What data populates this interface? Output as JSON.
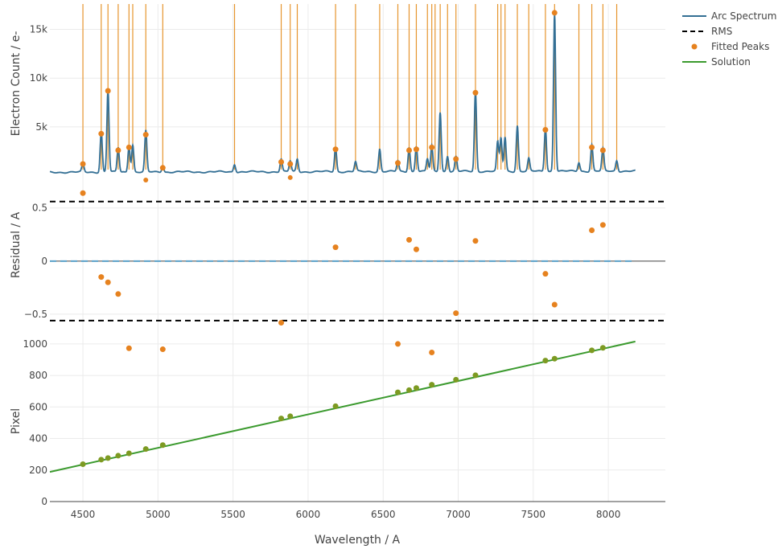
{
  "chart_data": {
    "type": "line",
    "colors": {
      "spectrum": "#336f94",
      "peak_lines": "#e6952e",
      "peaks": "#e6821f",
      "rms": "#000000",
      "solution": "#3b9a2e",
      "grid": "#ebebeb"
    },
    "legend": {
      "placement": "top-right",
      "entries": [
        {
          "name": "Arc Spectrum",
          "style": "line",
          "color": "#336f94"
        },
        {
          "name": "RMS",
          "style": "dash",
          "color": "#000000"
        },
        {
          "name": "Fitted Peaks",
          "style": "marker",
          "color": "#e6821f"
        },
        {
          "name": "Solution",
          "style": "line",
          "color": "#3b9a2e"
        }
      ]
    },
    "x_axis": {
      "label": "Wavelength / A",
      "range": [
        4280,
        8380
      ],
      "ticks": [
        4500,
        5000,
        5500,
        6000,
        6500,
        7000,
        7500,
        8000
      ],
      "tick_labels": [
        "4500",
        "5000",
        "5500",
        "6000",
        "6500",
        "7000",
        "7500",
        "8000"
      ]
    },
    "panels": [
      {
        "id": "spectrum",
        "ylabel": "Electron Count / e-",
        "ylim": [
          -700,
          17600
        ],
        "yticks": [
          5000,
          10000,
          15000
        ],
        "ytick_labels": [
          "5k",
          "10k",
          "15k"
        ],
        "grid": true,
        "baseline": 350,
        "spectrum_end": [
          4280,
          8180
        ],
        "peak_lines": [
          4500,
          4622,
          4667,
          4735,
          4807,
          4832,
          4919,
          5032,
          5510,
          5821,
          5881,
          5928,
          6183,
          6316,
          6477,
          6598,
          6673,
          6721,
          6795,
          6824,
          6846,
          6880,
          6929,
          6985,
          7115,
          7263,
          7285,
          7312,
          7394,
          7470,
          7581,
          7642,
          7804,
          7890,
          7964,
          8056
        ],
        "spectrum_peaks": [
          {
            "x": 4500,
            "h": 900
          },
          {
            "x": 4622,
            "h": 4200
          },
          {
            "x": 4667,
            "h": 8400
          },
          {
            "x": 4735,
            "h": 2500
          },
          {
            "x": 4807,
            "h": 2700
          },
          {
            "x": 4832,
            "h": 2800
          },
          {
            "x": 4919,
            "h": 4200
          },
          {
            "x": 5032,
            "h": 600
          },
          {
            "x": 5510,
            "h": 800
          },
          {
            "x": 5821,
            "h": 1300
          },
          {
            "x": 5881,
            "h": 1100
          },
          {
            "x": 5928,
            "h": 1300
          },
          {
            "x": 6183,
            "h": 2500
          },
          {
            "x": 6316,
            "h": 1000
          },
          {
            "x": 6477,
            "h": 2300
          },
          {
            "x": 6598,
            "h": 1100
          },
          {
            "x": 6673,
            "h": 2500
          },
          {
            "x": 6721,
            "h": 2600
          },
          {
            "x": 6795,
            "h": 1300
          },
          {
            "x": 6824,
            "h": 2600
          },
          {
            "x": 6880,
            "h": 6100
          },
          {
            "x": 6929,
            "h": 1600
          },
          {
            "x": 6985,
            "h": 1500
          },
          {
            "x": 7115,
            "h": 8200
          },
          {
            "x": 7263,
            "h": 3000
          },
          {
            "x": 7285,
            "h": 3400
          },
          {
            "x": 7312,
            "h": 3500
          },
          {
            "x": 7394,
            "h": 4700
          },
          {
            "x": 7470,
            "h": 1300
          },
          {
            "x": 7581,
            "h": 4500
          },
          {
            "x": 7642,
            "h": 16200
          },
          {
            "x": 7804,
            "h": 900
          },
          {
            "x": 7890,
            "h": 2700
          },
          {
            "x": 7964,
            "h": 2300
          },
          {
            "x": 8056,
            "h": 1100
          }
        ],
        "fitted_peaks": [
          {
            "x": 4500,
            "y": 1200
          },
          {
            "x": 4622,
            "y": 4300
          },
          {
            "x": 4667,
            "y": 8700
          },
          {
            "x": 4735,
            "y": 2600
          },
          {
            "x": 4807,
            "y": 2900
          },
          {
            "x": 4919,
            "y": 4200
          },
          {
            "x": 5032,
            "y": 800
          },
          {
            "x": 5821,
            "y": 1400
          },
          {
            "x": 5881,
            "y": 1200
          },
          {
            "x": 6183,
            "y": 2700
          },
          {
            "x": 6598,
            "y": 1300
          },
          {
            "x": 6673,
            "y": 2600
          },
          {
            "x": 6721,
            "y": 2700
          },
          {
            "x": 6824,
            "y": 2900
          },
          {
            "x": 6985,
            "y": 1700
          },
          {
            "x": 7115,
            "y": 8500
          },
          {
            "x": 7581,
            "y": 4700
          },
          {
            "x": 7642,
            "y": 16700
          },
          {
            "x": 7890,
            "y": 2900
          },
          {
            "x": 7964,
            "y": 2600
          }
        ],
        "cut_markers": [
          {
            "x": 4919,
            "y": -450
          },
          {
            "x": 5881,
            "y": -200
          }
        ]
      },
      {
        "id": "residual",
        "ylabel": "Residual / A",
        "ylim": [
          -0.72,
          0.74
        ],
        "yticks": [
          -0.5,
          0,
          0.5
        ],
        "ytick_labels": [
          "−0.5",
          "0",
          "0.5"
        ],
        "grid": true,
        "rms": [
          0.56,
          -0.56
        ],
        "zero_line": true,
        "points": [
          {
            "x": 4500,
            "y": 0.64
          },
          {
            "x": 4622,
            "y": -0.15
          },
          {
            "x": 4667,
            "y": -0.2
          },
          {
            "x": 4735,
            "y": -0.31
          },
          {
            "x": 4807,
            "y": -0.82
          },
          {
            "x": 5032,
            "y": -0.83
          },
          {
            "x": 5821,
            "y": -0.58
          },
          {
            "x": 6183,
            "y": 0.13
          },
          {
            "x": 6598,
            "y": -0.78
          },
          {
            "x": 6673,
            "y": 0.2
          },
          {
            "x": 6721,
            "y": 0.11
          },
          {
            "x": 6824,
            "y": -0.86
          },
          {
            "x": 6985,
            "y": -0.49
          },
          {
            "x": 7115,
            "y": 0.19
          },
          {
            "x": 7581,
            "y": -0.12
          },
          {
            "x": 7642,
            "y": -0.41
          },
          {
            "x": 7890,
            "y": 0.29
          },
          {
            "x": 7964,
            "y": 0.34
          }
        ]
      },
      {
        "id": "solution",
        "ylabel": "Pixel",
        "ylim": [
          0,
          1040
        ],
        "yticks": [
          0,
          200,
          400,
          600,
          800,
          1000
        ],
        "ytick_labels": [
          "0",
          "200",
          "400",
          "600",
          "800",
          "1000"
        ],
        "grid": true,
        "line": [
          {
            "x": 4280,
            "y": 188
          },
          {
            "x": 8180,
            "y": 1015
          }
        ],
        "points": [
          {
            "x": 4500,
            "y": 237
          },
          {
            "x": 4622,
            "y": 266
          },
          {
            "x": 4667,
            "y": 276
          },
          {
            "x": 4735,
            "y": 291
          },
          {
            "x": 4807,
            "y": 306
          },
          {
            "x": 4919,
            "y": 333
          },
          {
            "x": 5032,
            "y": 358
          },
          {
            "x": 5821,
            "y": 527
          },
          {
            "x": 5881,
            "y": 541
          },
          {
            "x": 6183,
            "y": 605
          },
          {
            "x": 6598,
            "y": 693
          },
          {
            "x": 6673,
            "y": 707
          },
          {
            "x": 6721,
            "y": 720
          },
          {
            "x": 6824,
            "y": 741
          },
          {
            "x": 6985,
            "y": 773
          },
          {
            "x": 7115,
            "y": 801
          },
          {
            "x": 7581,
            "y": 894
          },
          {
            "x": 7642,
            "y": 906
          },
          {
            "x": 7890,
            "y": 959
          },
          {
            "x": 7964,
            "y": 975
          }
        ]
      }
    ]
  }
}
